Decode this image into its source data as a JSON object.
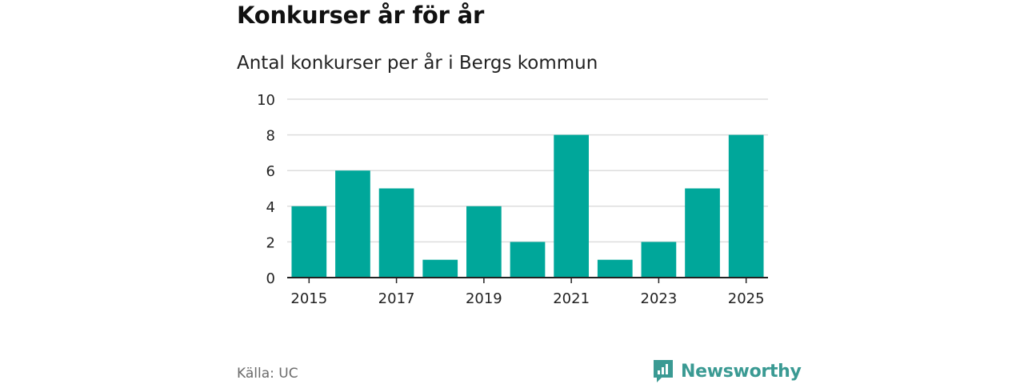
{
  "title": "Konkurser år för år",
  "subtitle": "Antal konkurser per år i Bergs kommun",
  "source": "Källa: UC",
  "brand": {
    "name": "Newsworthy",
    "icon": "newsworthy-logo-icon"
  },
  "colors": {
    "bar": "#00a79a",
    "grid": "#dddddd",
    "axis": "#222222",
    "brand": "#3a9a93"
  },
  "chart_data": {
    "type": "bar",
    "categories": [
      "2015",
      "2016",
      "2017",
      "2018",
      "2019",
      "2020",
      "2021",
      "2022",
      "2023",
      "2024",
      "2025"
    ],
    "values": [
      4,
      6,
      5,
      1,
      4,
      2,
      8,
      1,
      2,
      5,
      8
    ],
    "x_tick_labels": [
      "2015",
      "2017",
      "2019",
      "2021",
      "2023",
      "2025"
    ],
    "y_ticks": [
      0,
      2,
      4,
      6,
      8,
      10
    ],
    "ylim": [
      0,
      10
    ],
    "grid": true,
    "xlabel": "",
    "ylabel": ""
  }
}
